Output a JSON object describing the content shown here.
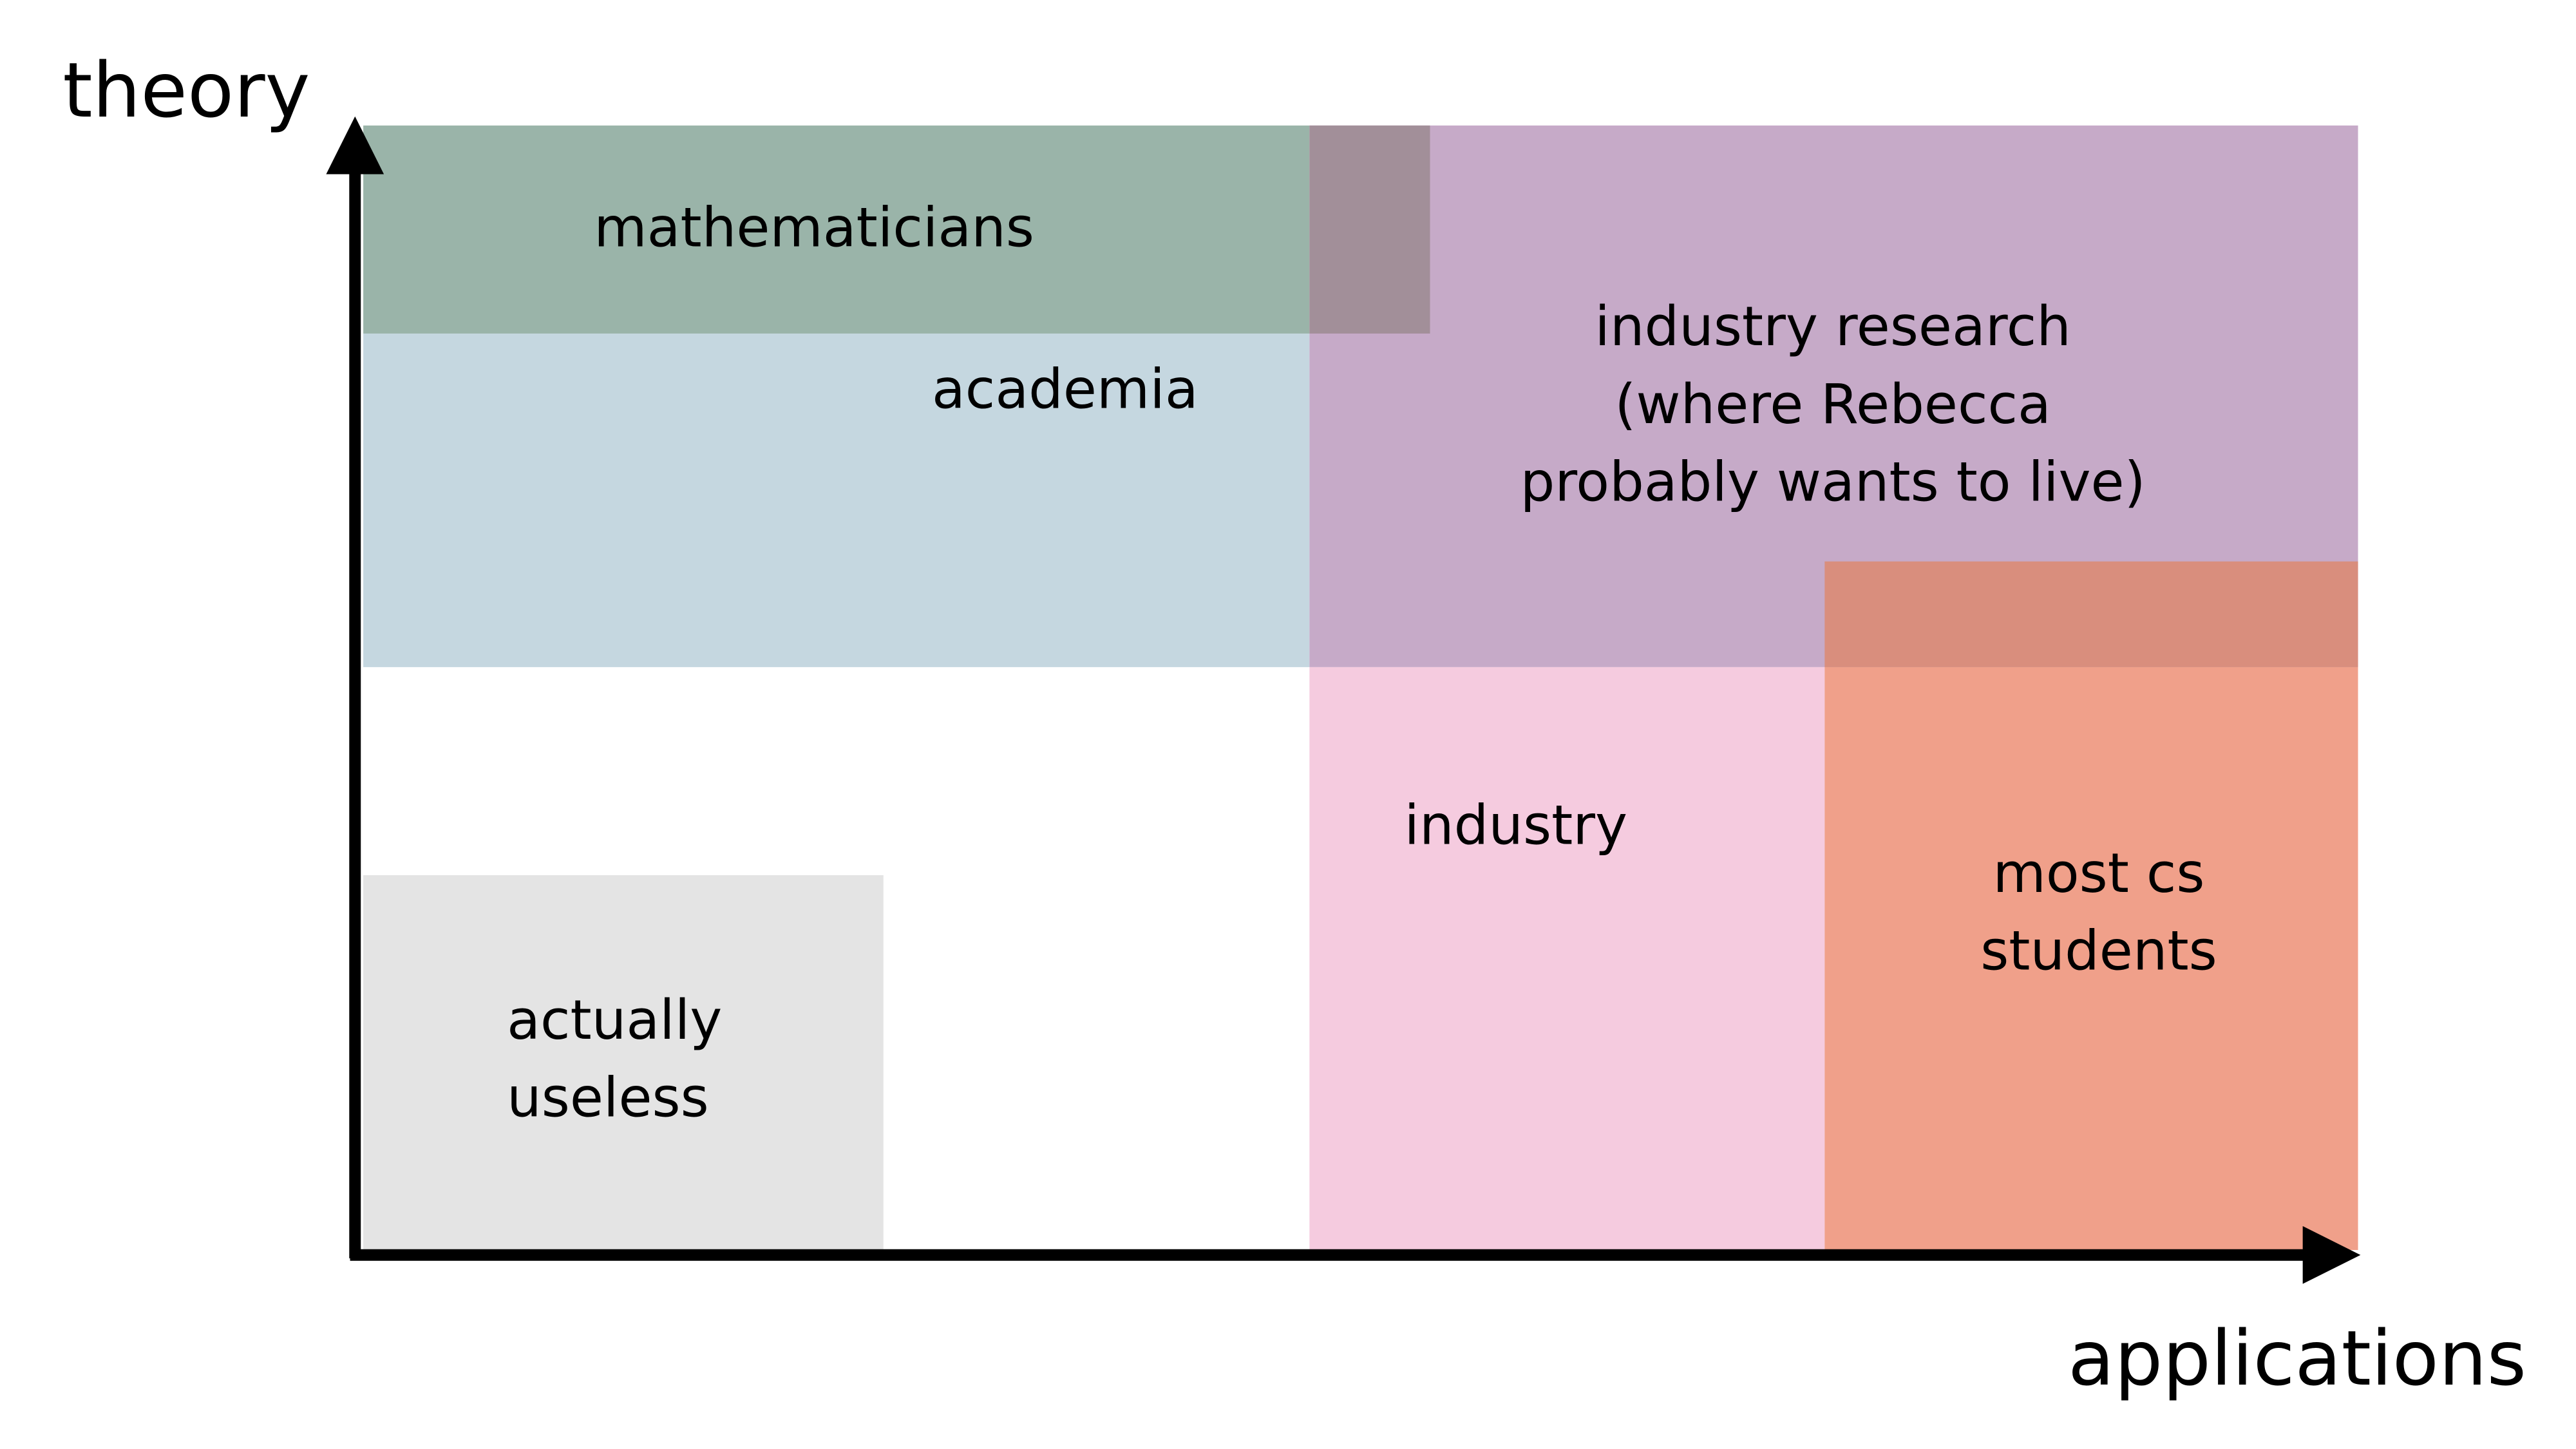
{
  "axes": {
    "y_label": "theory",
    "x_label": "applications"
  },
  "regions": [
    {
      "lines": [
        "mathematicians"
      ]
    },
    {
      "lines": [
        "academia"
      ]
    },
    {
      "lines": [
        "industry research",
        "(where Rebecca",
        "probably wants to live)"
      ]
    },
    {
      "lines": [
        "industry"
      ]
    },
    {
      "lines": [
        "most cs",
        "students"
      ]
    },
    {
      "lines": [
        "actually",
        "useless"
      ]
    }
  ]
}
